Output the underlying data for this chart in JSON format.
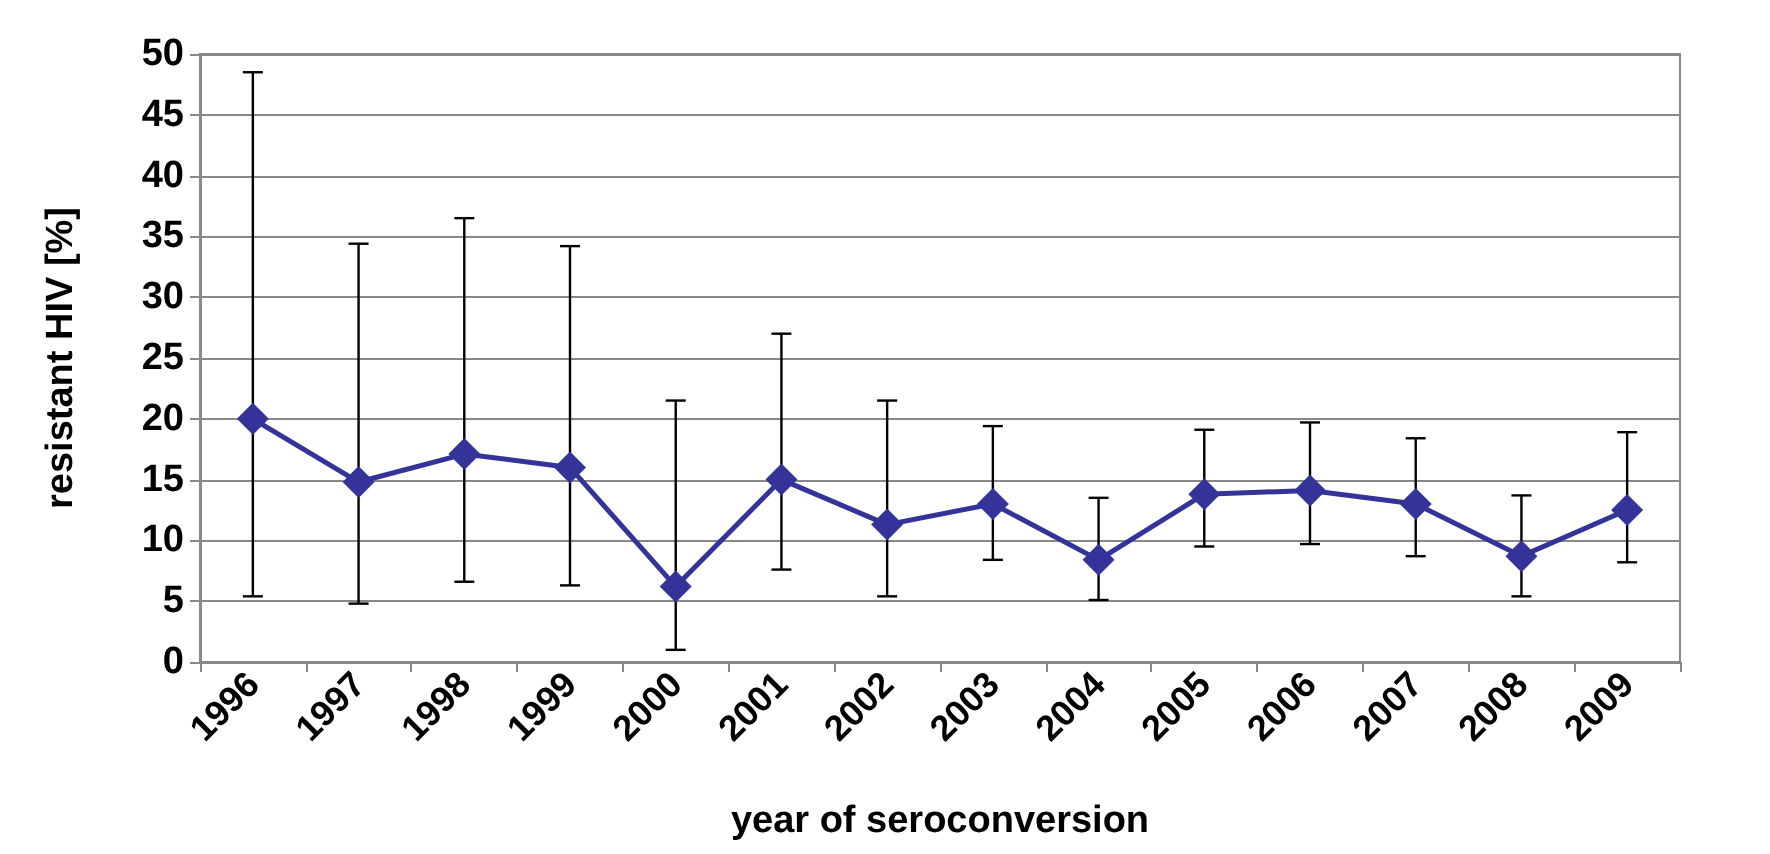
{
  "chart_data": {
    "type": "line",
    "xlabel": "year of seroconversion",
    "ylabel": "resistant HIV [%]",
    "categories": [
      "1996",
      "1997",
      "1998",
      "1999",
      "2000",
      "2001",
      "2002",
      "2003",
      "2004",
      "2005",
      "2006",
      "2007",
      "2008",
      "2009"
    ],
    "series": [
      {
        "color": "#333399",
        "values": [
          20,
          14.8,
          17.1,
          16,
          6.2,
          15,
          11.3,
          13,
          8.4,
          13.8,
          14.1,
          13,
          8.7,
          12.5
        ],
        "errors": [
          [
            5.4,
            48.5
          ],
          [
            4.8,
            34.4
          ],
          [
            6.6,
            36.5
          ],
          [
            6.3,
            34.2
          ],
          [
            1,
            21.5
          ],
          [
            7.6,
            27
          ],
          [
            5.4,
            21.5
          ],
          [
            8.4,
            19.4
          ],
          [
            5.1,
            13.5
          ],
          [
            9.5,
            19.1
          ],
          [
            9.7,
            19.7
          ],
          [
            8.7,
            18.4
          ],
          [
            5.4,
            13.7
          ],
          [
            8.2,
            18.9
          ]
        ]
      }
    ],
    "ylim": [
      0,
      50
    ],
    "yticks": [
      0,
      5,
      10,
      15,
      20,
      25,
      30,
      35,
      40,
      45,
      50
    ],
    "grid": "y",
    "marker": "diamond",
    "line_style": "solid"
  }
}
